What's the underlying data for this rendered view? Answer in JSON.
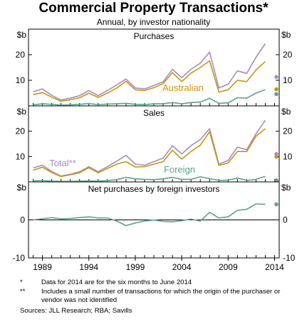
{
  "title": "Commercial Property Transactions*",
  "subtitle": "Annual, by investor nationality",
  "unit_label": "$b",
  "notes": [
    {
      "mark": "*",
      "text": "Data for 2014 are for the six months to June 2014"
    },
    {
      "mark": "**",
      "text": "Includes a small number of transactions for which the origin of the purchaser or vendor was not identified"
    }
  ],
  "sources": "Sources:  JLL Research; RBA; Savills",
  "colors": {
    "total": "#a58bc6",
    "australian": "#c8960c",
    "foreign": "#5aa38d"
  },
  "chart_data": [
    {
      "type": "line",
      "title": "Purchases",
      "x": [
        1988,
        1989,
        1990,
        1991,
        1992,
        1993,
        1994,
        1995,
        1996,
        1997,
        1998,
        1999,
        2000,
        2001,
        2002,
        2003,
        2004,
        2005,
        2006,
        2007,
        2008,
        2009,
        2010,
        2011,
        2012,
        2013
      ],
      "ylim": [
        0,
        30
      ],
      "yticks": [
        10,
        20
      ],
      "series": [
        {
          "name": "",
          "color": "#a58bc6",
          "values": [
            5.5,
            6.6,
            4.1,
            2.3,
            3.0,
            4.0,
            6.0,
            4.0,
            6.0,
            8.2,
            10.5,
            7.0,
            6.6,
            8.0,
            9.4,
            14.3,
            11.0,
            14.3,
            16.7,
            21.0,
            7.0,
            8.5,
            13.7,
            12.7,
            19.0,
            24.3
          ]
        },
        {
          "name": "Australian",
          "color": "#c8960c",
          "values": [
            4.4,
            5.2,
            3.4,
            1.8,
            2.4,
            3.2,
            5.0,
            3.3,
            5.0,
            7.0,
            9.6,
            6.3,
            6.0,
            7.1,
            8.7,
            13.0,
            9.5,
            12.8,
            15.0,
            17.6,
            5.4,
            6.3,
            10.0,
            9.5,
            14.0,
            17.3
          ]
        },
        {
          "name": "",
          "color": "#5aa38d",
          "values": [
            0.4,
            0.8,
            0.6,
            0.3,
            0.4,
            0.6,
            0.9,
            0.5,
            0.7,
            0.8,
            1.0,
            0.6,
            0.5,
            0.8,
            0.8,
            1.3,
            0.8,
            1.3,
            1.5,
            3.0,
            1.0,
            1.2,
            3.2,
            3.0,
            5.0,
            6.3
          ]
        }
      ],
      "dots": [
        {
          "color": "#a58bc6",
          "value": 11.3
        },
        {
          "color": "#c8960c",
          "value": 6.5
        },
        {
          "color": "#5aa38d",
          "value": 4.6
        }
      ]
    },
    {
      "type": "line",
      "title": "Sales",
      "x": [
        1988,
        1989,
        1990,
        1991,
        1992,
        1993,
        1994,
        1995,
        1996,
        1997,
        1998,
        1999,
        2000,
        2001,
        2002,
        2003,
        2004,
        2005,
        2006,
        2007,
        2008,
        2009,
        2010,
        2011,
        2012,
        2013
      ],
      "ylim": [
        0,
        30
      ],
      "yticks": [
        10,
        20
      ],
      "series": [
        {
          "name": "Total**",
          "color": "#a58bc6",
          "values": [
            5.5,
            6.6,
            4.1,
            2.3,
            3.0,
            4.0,
            6.0,
            4.0,
            6.0,
            8.2,
            10.5,
            7.0,
            6.6,
            8.0,
            9.4,
            14.3,
            11.0,
            14.3,
            16.7,
            21.0,
            7.0,
            8.5,
            13.7,
            12.7,
            19.0,
            24.3
          ]
        },
        {
          "name": "",
          "color": "#c8960c",
          "values": [
            4.6,
            5.8,
            3.7,
            2.1,
            2.8,
            3.6,
            5.6,
            3.6,
            5.3,
            7.0,
            8.0,
            5.9,
            6.0,
            7.0,
            8.0,
            12.5,
            9.0,
            12.0,
            14.5,
            19.8,
            6.5,
            7.5,
            12.0,
            12.0,
            18.0,
            21.0
          ]
        },
        {
          "name": "Foreign",
          "color": "#5aa38d",
          "values": [
            0.4,
            0.5,
            0.3,
            0.2,
            0.2,
            0.3,
            0.4,
            0.3,
            0.5,
            0.9,
            1.8,
            1.2,
            1.0,
            0.9,
            1.2,
            1.8,
            1.0,
            1.0,
            2.0,
            1.3,
            0.6,
            0.7,
            1.5,
            0.6,
            1.0,
            2.2
          ]
        }
      ],
      "dots": [
        {
          "color": "#a58bc6",
          "value": 11.0
        },
        {
          "color": "#c8960c",
          "value": 9.9
        },
        {
          "color": "#5aa38d",
          "value": 0.6
        }
      ]
    },
    {
      "type": "line",
      "title": "Net purchases by foreign investors",
      "x": [
        1988,
        1989,
        1990,
        1991,
        1992,
        1993,
        1994,
        1995,
        1996,
        1997,
        1998,
        1999,
        2000,
        2001,
        2002,
        2003,
        2004,
        2005,
        2006,
        2007,
        2008,
        2009,
        2010,
        2011,
        2012,
        2013
      ],
      "ylim": [
        -10,
        10
      ],
      "yticks": [
        -10,
        0
      ],
      "series": [
        {
          "name": "",
          "color": "#5aa38d",
          "values": [
            0.0,
            0.3,
            0.6,
            0.3,
            0.4,
            0.6,
            0.8,
            0.5,
            0.5,
            -0.3,
            -1.5,
            -0.8,
            -0.3,
            0.0,
            -0.4,
            -0.5,
            -0.2,
            0.2,
            -0.3,
            2.0,
            0.5,
            0.8,
            2.5,
            2.8,
            4.2,
            4.1
          ]
        }
      ],
      "dots": [
        {
          "color": "#5aa38d",
          "value": 4.1
        }
      ]
    }
  ],
  "x_axis": {
    "ticks": [
      "1989",
      "1994",
      "1999",
      "2004",
      "2009",
      "2014"
    ],
    "range": [
      1987.5,
      2014.5
    ]
  }
}
